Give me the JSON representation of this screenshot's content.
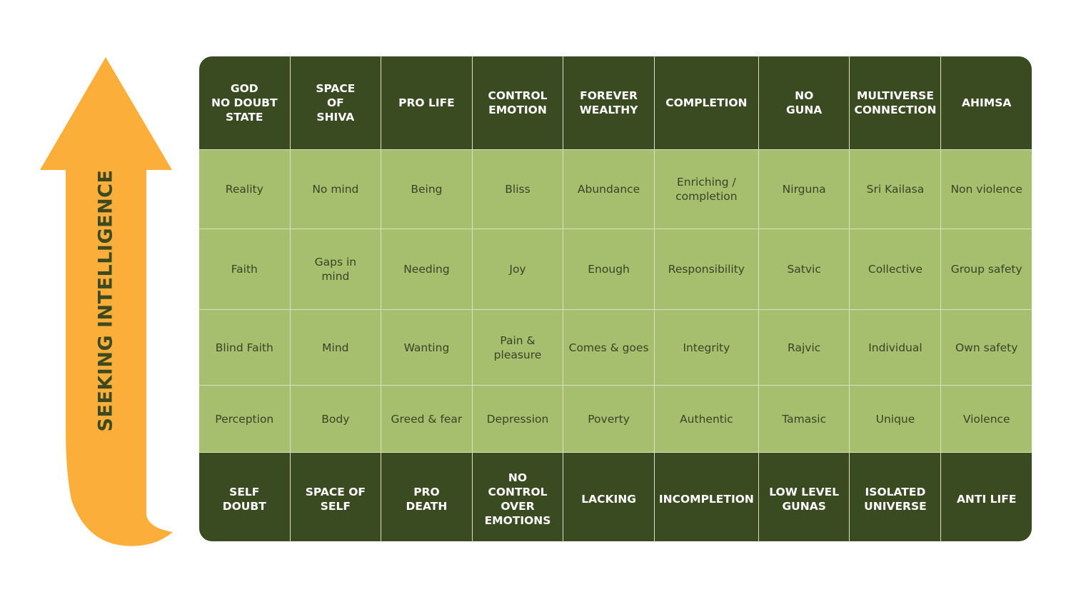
{
  "arrow": {
    "label": "SEEKING INTELLIGENCE",
    "color": "#fbaf3a"
  },
  "top_row": [
    "GOD\nNO DOUBT\nSTATE",
    "SPACE\nOF\nSHIVA",
    "PRO LIFE",
    "CONTROL\nEMOTION",
    "FOREVER\nWEALTHY",
    "COMPLETION",
    "NO\nGUNA",
    "MULTIVERSE\nCONNECTION",
    "AHIMSA"
  ],
  "rows": [
    [
      "Reality",
      "No mind",
      "Being",
      "Bliss",
      "Abundance",
      "Enriching /\ncompletion",
      "Nirguna",
      "Sri Kailasa",
      "Non violence"
    ],
    [
      "Faith",
      "Gaps in\nmind",
      "Needing",
      "Joy",
      "Enough",
      "Responsibility",
      "Satvic",
      "Collective",
      "Group safety"
    ],
    [
      "Blind Faith",
      "Mind",
      "Wanting",
      "Pain &\npleasure",
      "Comes & goes",
      "Integrity",
      "Rajvic",
      "Individual",
      "Own safety"
    ],
    [
      "Perception",
      "Body",
      "Greed & fear",
      "Depression",
      "Poverty",
      "Authentic",
      "Tamasic",
      "Unique",
      "Violence"
    ]
  ],
  "bottom_row": [
    "SELF\nDOUBT",
    "SPACE OF\nSELF",
    "PRO\nDEATH",
    "NO CONTROL\nOVER\nEMOTIONS",
    "LACKING",
    "INCOMPLETION",
    "LOW LEVEL\nGUNAS",
    "ISOLATED\nUNIVERSE",
    "ANTI LIFE"
  ],
  "colors": {
    "header": "#3a4a21",
    "cell": "#a5bf6e",
    "cell_text": "#3a4424",
    "arrow_text": "#3d4a1f"
  }
}
